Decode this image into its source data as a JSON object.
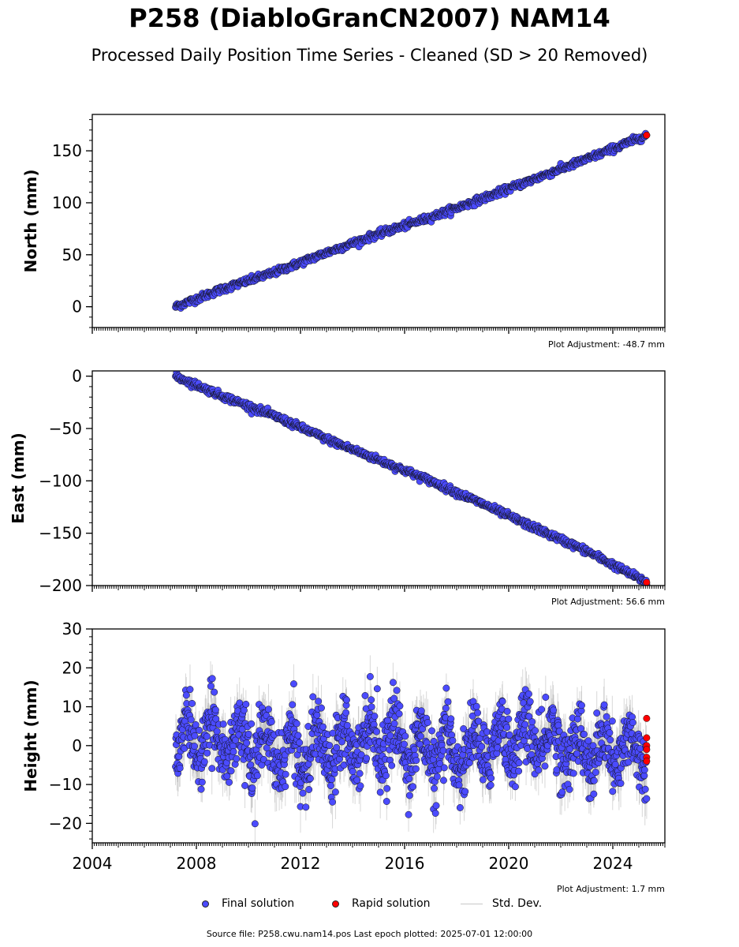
{
  "title": "P258 (DiabloGranCN2007) NAM14",
  "subtitle": "Processed Daily Position Time Series - Cleaned (SD > 20 Removed)",
  "source_text": "Source file: P258.cwu.nam14.pos  Last epoch plotted: 2025-07-01 12:00:00",
  "legend": {
    "final": "Final solution",
    "rapid": "Rapid solution",
    "std": "Std. Dev."
  },
  "colors": {
    "final": "#4b4bff",
    "rapid": "#ff0000",
    "std": "#a9a9a9",
    "edge": "#111111"
  },
  "chart_data": [
    {
      "type": "scatter",
      "ylabel": "North (mm)",
      "adjustment": "Plot Adjustment: -48.7 mm",
      "xlim": [
        2004.0,
        2026.0
      ],
      "ylim": [
        -20,
        185
      ],
      "yticks": [
        0,
        50,
        100,
        150
      ],
      "yminor": 10,
      "xticks": [
        2008,
        2012,
        2016,
        2020,
        2024
      ],
      "x_range_data": [
        2007.2,
        2025.3
      ],
      "series": [
        {
          "kind": "final",
          "x": [
            2007.2,
            2009.0,
            2011.0,
            2013.0,
            2015.0,
            2017.0,
            2019.0,
            2021.0,
            2023.0,
            2025.3
          ],
          "y": [
            0,
            17,
            33,
            52,
            70,
            86,
            104,
            123,
            142,
            165
          ]
        },
        {
          "kind": "rapid",
          "x": [
            2025.3
          ],
          "y": [
            165
          ]
        }
      ]
    },
    {
      "type": "scatter",
      "ylabel": "East (mm)",
      "adjustment": "Plot Adjustment: 56.6 mm",
      "xlim": [
        2004.0,
        2026.0
      ],
      "ylim": [
        -200,
        5
      ],
      "yticks": [
        0,
        -50,
        -100,
        -150,
        -200
      ],
      "yminor": 10,
      "xticks": [
        2008,
        2012,
        2016,
        2020,
        2024
      ],
      "x_range_data": [
        2007.2,
        2025.3
      ],
      "series": [
        {
          "kind": "final",
          "x": [
            2007.2,
            2009.0,
            2011.0,
            2013.0,
            2015.0,
            2017.0,
            2019.0,
            2021.0,
            2023.0,
            2025.3
          ],
          "y": [
            0,
            -19,
            -38,
            -60,
            -80,
            -100,
            -122,
            -145,
            -167,
            -197
          ]
        },
        {
          "kind": "rapid",
          "x": [
            2025.3
          ],
          "y": [
            -197
          ]
        }
      ]
    },
    {
      "type": "scatter",
      "ylabel": "Height (mm)",
      "adjustment": "Plot Adjustment: 1.7 mm",
      "xlim": [
        2004.0,
        2026.0
      ],
      "ylim": [
        -25,
        30
      ],
      "yticks": [
        -20,
        -10,
        0,
        10,
        20,
        30
      ],
      "yminor": 2,
      "xticks": [
        2008,
        2012,
        2016,
        2020,
        2024
      ],
      "xticklabels": [
        "2004",
        "2008",
        "2012",
        "2016",
        "2020",
        "2024"
      ],
      "xticks_labeled": [
        2004,
        2008,
        2012,
        2016,
        2020,
        2024
      ],
      "x_range_data": [
        2007.2,
        2025.3
      ],
      "noise_sd_mm": 6.5,
      "series": [
        {
          "kind": "final",
          "x": [
            2007.2,
            2025.3
          ],
          "y": [
            0,
            0
          ]
        },
        {
          "kind": "rapid",
          "x": [
            2025.3,
            2025.3,
            2025.3,
            2025.3,
            2025.3,
            2025.3
          ],
          "y": [
            7,
            2,
            0,
            -1,
            -3,
            -4
          ]
        }
      ]
    }
  ]
}
